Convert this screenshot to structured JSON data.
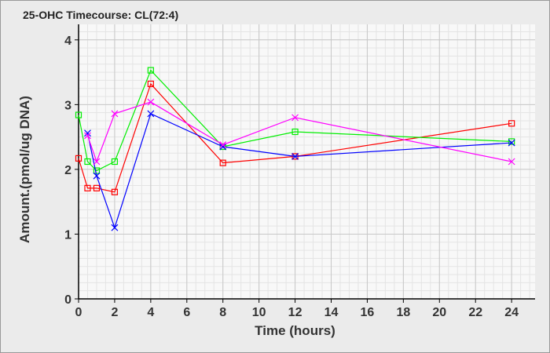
{
  "chart_data": {
    "type": "line",
    "title": "25-OHC Timecourse: CL(72:4)",
    "xlabel": "Time (hours)",
    "ylabel": "Amount.(pmol/ug DNA)",
    "xlim": [
      0,
      25.3
    ],
    "ylim": [
      0,
      4.24
    ],
    "xticks": [
      0,
      2,
      4,
      6,
      8,
      10,
      12,
      14,
      16,
      18,
      20,
      22,
      24
    ],
    "yticks": [
      0,
      1,
      2,
      3,
      4
    ],
    "grid": true,
    "series": [
      {
        "name": "red",
        "color": "#ff0000",
        "marker": "square",
        "x": [
          0,
          0.5,
          1,
          2,
          4,
          8,
          12,
          24
        ],
        "y": [
          2.17,
          1.71,
          1.71,
          1.65,
          3.32,
          2.1,
          2.2,
          2.71
        ]
      },
      {
        "name": "green",
        "color": "#00ee00",
        "marker": "square",
        "x": [
          0,
          0.5,
          1,
          2,
          4,
          8,
          12,
          24
        ],
        "y": [
          2.84,
          2.12,
          1.98,
          2.12,
          3.53,
          2.35,
          2.58,
          2.43
        ]
      },
      {
        "name": "blue",
        "color": "#0000ff",
        "marker": "x",
        "x": [
          0.5,
          1,
          2,
          4,
          8,
          12,
          24
        ],
        "y": [
          2.56,
          1.9,
          1.1,
          2.86,
          2.35,
          2.2,
          2.41
        ]
      },
      {
        "name": "magenta",
        "color": "#ff00ff",
        "marker": "x",
        "x": [
          0.5,
          1,
          2,
          4,
          8,
          12,
          24
        ],
        "y": [
          2.52,
          2.12,
          2.86,
          3.04,
          2.38,
          2.8,
          2.12
        ]
      }
    ]
  }
}
